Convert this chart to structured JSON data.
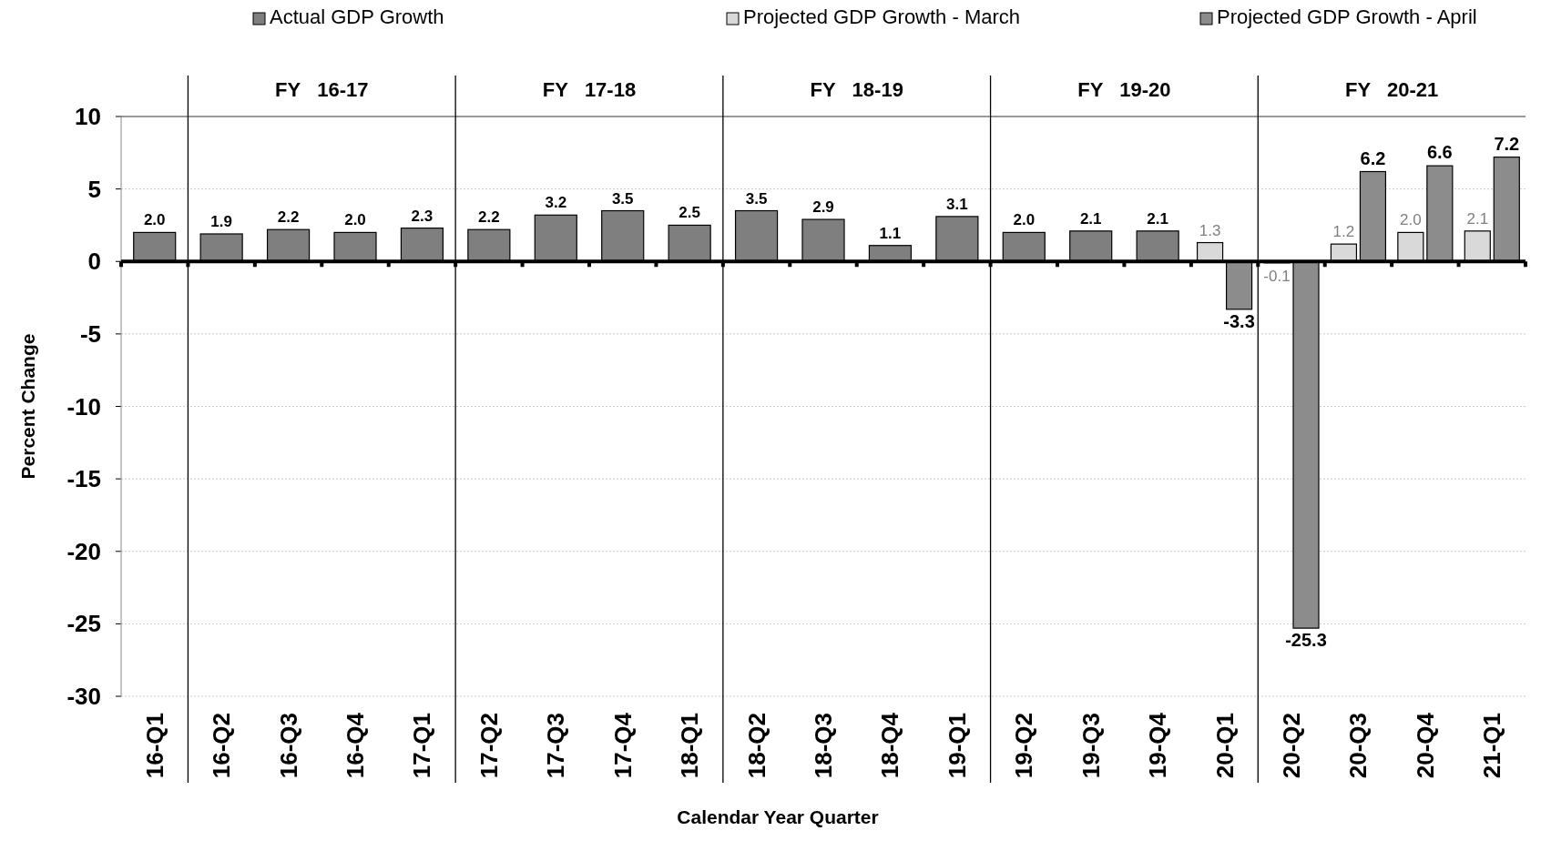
{
  "chart_data": {
    "type": "bar",
    "xlabel": "Calendar Year Quarter",
    "ylabel": "Percent Change",
    "categories": [
      "16-Q1",
      "16-Q2",
      "16-Q3",
      "16-Q4",
      "17-Q1",
      "17-Q2",
      "17-Q3",
      "17-Q4",
      "18-Q1",
      "18-Q2",
      "18-Q3",
      "18-Q4",
      "19-Q1",
      "19-Q2",
      "19-Q3",
      "19-Q4",
      "20-Q1",
      "20-Q2",
      "20-Q3",
      "20-Q4",
      "21-Q1"
    ],
    "series": [
      {
        "name": "Actual GDP Growth",
        "color": "#7f7f7f",
        "values": [
          2.0,
          1.9,
          2.2,
          2.0,
          2.3,
          2.2,
          3.2,
          3.5,
          2.5,
          3.5,
          2.9,
          1.1,
          3.1,
          2.0,
          2.1,
          2.1,
          null,
          null,
          null,
          null,
          null
        ],
        "value_labels": [
          "2.0",
          "1.9",
          "2.2",
          "2.0",
          "2.3",
          "2.2",
          "3.2",
          "3.5",
          "2.5",
          "3.5",
          "2.9",
          "1.1",
          "3.1",
          "2.0",
          "2.1",
          "2.1",
          null,
          null,
          null,
          null,
          null
        ]
      },
      {
        "name": "Projected GDP Growth - March",
        "color": "#d9d9d9",
        "values": [
          null,
          null,
          null,
          null,
          null,
          null,
          null,
          null,
          null,
          null,
          null,
          null,
          null,
          null,
          null,
          null,
          1.3,
          -0.1,
          1.2,
          2.0,
          2.1
        ],
        "value_labels": [
          null,
          null,
          null,
          null,
          null,
          null,
          null,
          null,
          null,
          null,
          null,
          null,
          null,
          null,
          null,
          null,
          "1.3",
          "-0.1",
          "1.2",
          "2.0",
          "2.1"
        ]
      },
      {
        "name": "Projected GDP Growth - April",
        "color": "#8c8c8c",
        "values": [
          null,
          null,
          null,
          null,
          null,
          null,
          null,
          null,
          null,
          null,
          null,
          null,
          null,
          null,
          null,
          null,
          -3.3,
          -25.3,
          6.2,
          6.6,
          7.2
        ],
        "value_labels": [
          null,
          null,
          null,
          null,
          null,
          null,
          null,
          null,
          null,
          null,
          null,
          null,
          null,
          null,
          null,
          null,
          "-3.3",
          "-25.3",
          "6.2",
          "6.6",
          "7.2"
        ]
      }
    ],
    "ylim": [
      -30,
      10
    ],
    "yticks": [
      -30,
      -25,
      -20,
      -15,
      -10,
      -5,
      0,
      5,
      10
    ],
    "grid": "y",
    "legend": "top",
    "annotations": [
      "FY   16-17",
      "FY   17-18",
      "FY   18-19",
      "FY   19-20",
      "FY   20-21"
    ]
  }
}
